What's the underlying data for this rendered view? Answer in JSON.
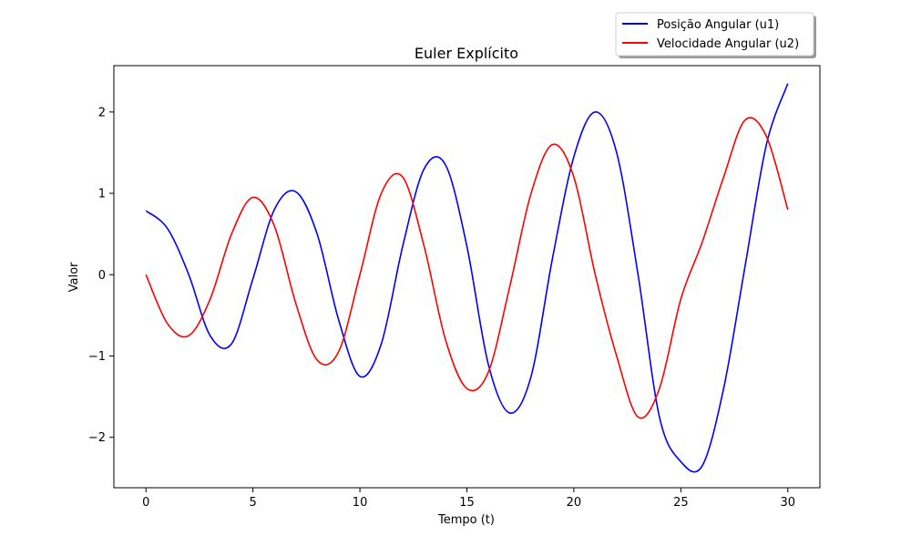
{
  "chart_data": {
    "type": "line",
    "title": "Euler Explícito",
    "xlabel": "Tempo (t)",
    "ylabel": "Valor",
    "xlim": [
      -1.5,
      31.5
    ],
    "ylim": [
      -2.62,
      2.57
    ],
    "xticks": [
      0,
      5,
      10,
      15,
      20,
      25,
      30
    ],
    "xtick_labels": [
      "0",
      "5",
      "10",
      "15",
      "20",
      "25",
      "30"
    ],
    "yticks": [
      -2,
      -1,
      0,
      1,
      2
    ],
    "ytick_labels": [
      "−2",
      "−1",
      "0",
      "1",
      "2"
    ],
    "grid": false,
    "legend_position": "top-right",
    "x": [
      0,
      1,
      2,
      3,
      4,
      5,
      6,
      7,
      8,
      9,
      10,
      11,
      12,
      13,
      14,
      15,
      16,
      17,
      18,
      19,
      20,
      21,
      22,
      23,
      24,
      25,
      26,
      27,
      28,
      29,
      30
    ],
    "series": [
      {
        "name": "Posição Angular (u1)",
        "color": "#0000ff",
        "values": [
          0.785,
          0.57,
          0.0,
          -0.75,
          -0.85,
          -0.05,
          0.8,
          1.02,
          0.5,
          -0.55,
          -1.25,
          -0.85,
          0.35,
          1.3,
          1.35,
          0.35,
          -1.1,
          -1.7,
          -1.25,
          0.2,
          1.45,
          2.0,
          1.5,
          0.0,
          -1.75,
          -2.3,
          -2.35,
          -1.4,
          0.1,
          1.6,
          2.35
        ]
      },
      {
        "name": "Velocidade Angular (u2)",
        "color": "#ff0000",
        "values": [
          0.0,
          -0.6,
          -0.75,
          -0.3,
          0.5,
          0.95,
          0.6,
          -0.35,
          -1.05,
          -0.95,
          0.0,
          1.0,
          1.2,
          0.35,
          -0.8,
          -1.4,
          -1.2,
          -0.15,
          1.0,
          1.6,
          1.2,
          0.0,
          -1.0,
          -1.75,
          -1.4,
          -0.3,
          0.4,
          1.2,
          1.9,
          1.7,
          0.8
        ]
      }
    ]
  }
}
